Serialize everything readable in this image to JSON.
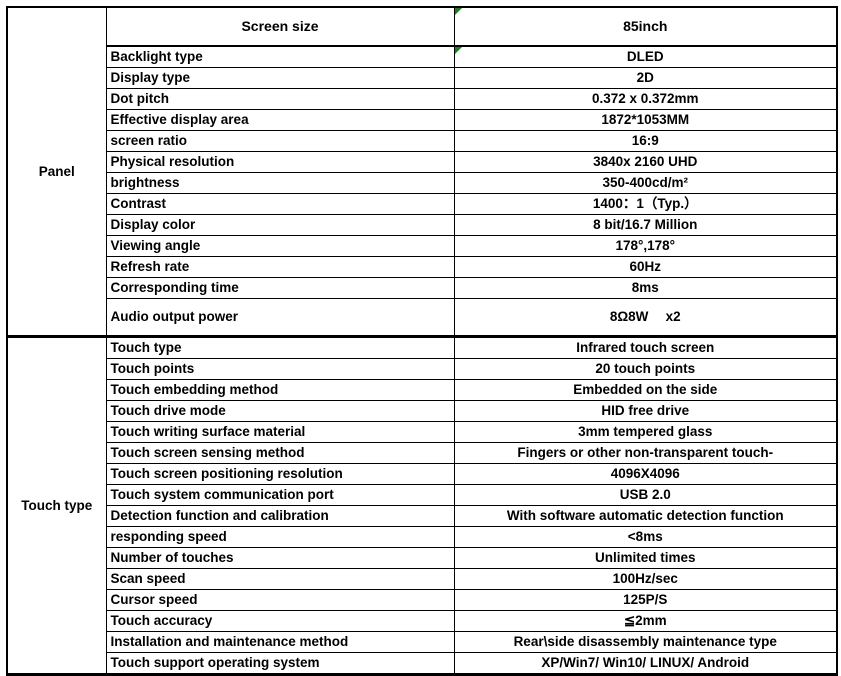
{
  "colors": {
    "marker_green": "#1e7d1e",
    "border": "#000000",
    "background": "#ffffff"
  },
  "table": {
    "sections": [
      {
        "category": "Panel",
        "rows": [
          {
            "label": "Screen size",
            "value": "85inch",
            "header": true,
            "marker": true
          },
          {
            "label": "Backlight type",
            "value": "DLED",
            "marker": true
          },
          {
            "label": "Display type",
            "value": "2D"
          },
          {
            "label": "Dot pitch",
            "value": "0.372 x 0.372mm"
          },
          {
            "label": "Effective display area",
            "value": "1872*1053MM"
          },
          {
            "label": "screen ratio",
            "value": "16:9"
          },
          {
            "label": "Physical resolution",
            "value": "3840x 2160 UHD"
          },
          {
            "label": "brightness",
            "value": "350-400cd/m²"
          },
          {
            "label": "Contrast",
            "value": "1400：1（Typ.）"
          },
          {
            "label": "Display color",
            "value": "8 bit/16.7 Million"
          },
          {
            "label": "Viewing angle",
            "value": "178°,178°"
          },
          {
            "label": "Refresh rate",
            "value": "60Hz"
          },
          {
            "label": "Corresponding time",
            "value": "8ms"
          },
          {
            "label": "Audio output power",
            "value": "8Ω8W　 x2",
            "tall": true
          }
        ]
      },
      {
        "category": "Touch type",
        "rows": [
          {
            "label": "Touch type",
            "value": "Infrared touch screen"
          },
          {
            "label": "Touch points",
            "value": "20 touch points"
          },
          {
            "label": "Touch embedding method",
            "value": "Embedded on the side"
          },
          {
            "label": "Touch drive mode",
            "value": "HID free drive"
          },
          {
            "label": "Touch writing surface material",
            "value": "3mm tempered glass"
          },
          {
            "label": "Touch screen sensing method",
            "value": "Fingers or other non-transparent touch-"
          },
          {
            "label": "Touch screen positioning resolution",
            "value": "4096X4096"
          },
          {
            "label": "Touch system communication port",
            "value": "USB 2.0"
          },
          {
            "label": "Detection function and calibration",
            "value": "With software automatic detection function"
          },
          {
            "label": "responding speed",
            "value": "<8ms"
          },
          {
            "label": "Number of touches",
            "value": "Unlimited times"
          },
          {
            "label": "Scan speed",
            "value": "100Hz/sec"
          },
          {
            "label": "Cursor speed",
            "value": "125P/S"
          },
          {
            "label": "Touch accuracy",
            "value": "≦2mm"
          },
          {
            "label": "Installation and maintenance method",
            "value": "Rear\\side disassembly maintenance type"
          },
          {
            "label": "Touch support operating system",
            "value": "XP/Win7/ Win10/ LINUX/ Android"
          }
        ]
      }
    ]
  }
}
